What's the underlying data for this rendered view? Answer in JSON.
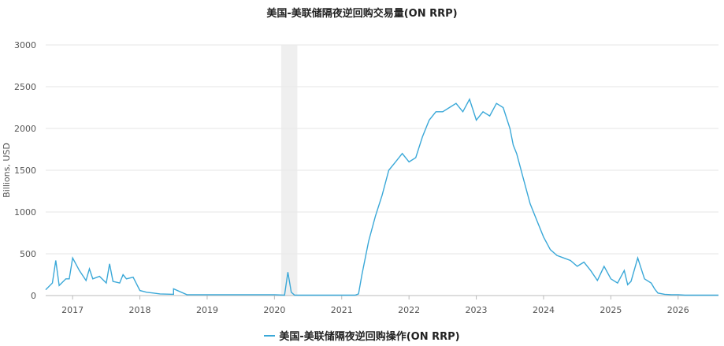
{
  "chart_data": {
    "type": "line",
    "title": "美国-美联储隔夜逆回购交易量(ON RRP)",
    "ylabel": "Billions, USD",
    "xlabel": "",
    "xlim": [
      2016.6,
      2026.6
    ],
    "ylim": [
      0,
      3000
    ],
    "yticks": [
      "0",
      "500",
      "1000",
      "1500",
      "2000",
      "2500",
      "3000"
    ],
    "xticks": [
      "2017",
      "2018",
      "2019",
      "2020",
      "2021",
      "2022",
      "2023",
      "2024",
      "2025",
      "2026"
    ],
    "grid": true,
    "legend_position": "bottom-center",
    "shaded_region": [
      2020.1,
      2020.34
    ],
    "series": [
      {
        "name": "美国-美联储隔夜逆回购操作(ON RRP)",
        "color": "#3aa8d8",
        "x": [
          2016.6,
          2016.7,
          2016.75,
          2016.8,
          2016.9,
          2016.95,
          2017.0,
          2017.1,
          2017.2,
          2017.25,
          2017.3,
          2017.4,
          2017.5,
          2017.55,
          2017.6,
          2017.7,
          2017.75,
          2017.8,
          2017.9,
          2017.95,
          2018.0,
          2018.1,
          2018.2,
          2018.3,
          2018.5,
          2018.5,
          2018.7,
          2018.9,
          2019.0,
          2019.5,
          2020.0,
          2020.15,
          2020.2,
          2020.25,
          2020.3,
          2020.5,
          2021.0,
          2021.2,
          2021.25,
          2021.3,
          2021.4,
          2021.5,
          2021.6,
          2021.7,
          2021.8,
          2021.9,
          2022.0,
          2022.1,
          2022.2,
          2022.3,
          2022.4,
          2022.5,
          2022.6,
          2022.7,
          2022.8,
          2022.9,
          2023.0,
          2023.1,
          2023.2,
          2023.3,
          2023.4,
          2023.5,
          2023.55,
          2023.6,
          2023.7,
          2023.8,
          2023.9,
          2024.0,
          2024.1,
          2024.2,
          2024.3,
          2024.4,
          2024.5,
          2024.6,
          2024.7,
          2024.8,
          2024.9,
          2025.0,
          2025.1,
          2025.2,
          2025.25,
          2025.3,
          2025.4,
          2025.5,
          2025.6,
          2025.65,
          2025.7,
          2025.8,
          2025.9,
          2026.0,
          2026.1,
          2026.2,
          2026.3,
          2026.4,
          2026.5,
          2026.6
        ],
        "values": [
          70,
          150,
          420,
          120,
          200,
          200,
          450,
          300,
          180,
          320,
          200,
          230,
          150,
          380,
          170,
          150,
          250,
          200,
          220,
          140,
          60,
          40,
          30,
          20,
          15,
          80,
          10,
          10,
          10,
          10,
          10,
          5,
          280,
          40,
          5,
          5,
          5,
          5,
          20,
          250,
          650,
          950,
          1200,
          1500,
          1600,
          1700,
          1600,
          1650,
          1900,
          2100,
          2200,
          2200,
          2250,
          2300,
          2200,
          2350,
          2100,
          2200,
          2150,
          2300,
          2250,
          2000,
          1800,
          1700,
          1400,
          1100,
          900,
          700,
          550,
          480,
          450,
          420,
          350,
          400,
          300,
          180,
          350,
          200,
          150,
          300,
          130,
          170,
          450,
          200,
          150,
          80,
          30,
          15,
          10,
          10,
          5,
          5,
          5,
          5,
          5,
          5
        ]
      }
    ]
  }
}
